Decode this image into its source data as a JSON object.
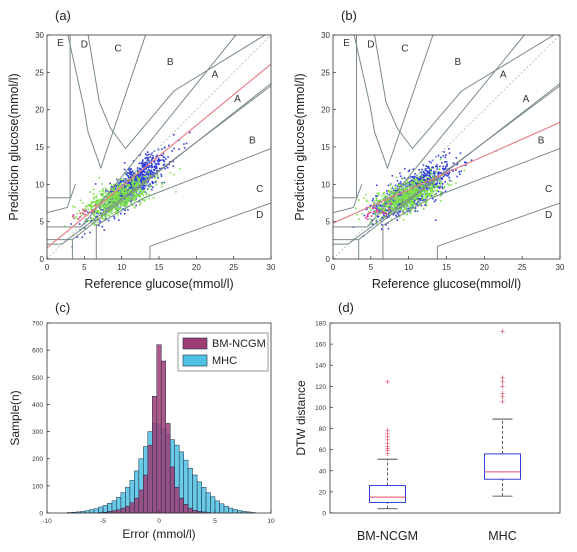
{
  "chart_data": [
    {
      "panel": "(a)",
      "type": "scatter",
      "subtype": "clarke-error-grid",
      "xlabel": "Reference glucose(mmol/l)",
      "ylabel": "Prediction glucose(mmol/l)",
      "xlim": [
        0,
        30
      ],
      "ylim": [
        0,
        30
      ],
      "xticks": [
        0,
        5,
        10,
        15,
        20,
        25,
        30
      ],
      "yticks": [
        0,
        5,
        10,
        15,
        20,
        25,
        30
      ],
      "zone_labels": [
        {
          "label": "E",
          "x": 1.8,
          "y": 28.5
        },
        {
          "label": "D",
          "x": 5.0,
          "y": 28.3
        },
        {
          "label": "C",
          "x": 9.5,
          "y": 27.8
        },
        {
          "label": "B",
          "x": 16.5,
          "y": 26.0
        },
        {
          "label": "A",
          "x": 22.5,
          "y": 24.3
        },
        {
          "label": "A",
          "x": 25.5,
          "y": 21.0
        },
        {
          "label": "B",
          "x": 27.5,
          "y": 15.5
        },
        {
          "label": "C",
          "x": 28.5,
          "y": 9.0
        },
        {
          "label": "D",
          "x": 28.5,
          "y": 5.5
        }
      ],
      "series": [
        {
          "color": "#3340d8",
          "center": [
            10.5,
            9.9
          ],
          "spread": 2.4,
          "slope": 0.78,
          "points": 900
        },
        {
          "color": "#7fe24a",
          "center": [
            8.8,
            8.3
          ],
          "spread": 2.2,
          "slope": 0.45,
          "points": 700
        },
        {
          "color": "#e8389a",
          "center": [
            4.2,
            6.2
          ],
          "spread": 0.8,
          "slope": 0.3,
          "points": 15
        }
      ],
      "fit_line": {
        "color": "#e8828a",
        "intercept": 1.5,
        "slope": 0.82
      }
    },
    {
      "panel": "(b)",
      "type": "scatter",
      "subtype": "clarke-error-grid",
      "xlabel": "Reference glucose(mmol/l)",
      "ylabel": "Prediction glucose(mmol/l)",
      "xlim": [
        0,
        30
      ],
      "ylim": [
        0,
        30
      ],
      "xticks": [
        0,
        5,
        10,
        15,
        20,
        25,
        30
      ],
      "yticks": [
        0,
        5,
        10,
        15,
        20,
        25,
        30
      ],
      "zone_labels": [
        {
          "label": "E",
          "x": 1.8,
          "y": 28.5
        },
        {
          "label": "D",
          "x": 5.0,
          "y": 28.3
        },
        {
          "label": "C",
          "x": 9.5,
          "y": 27.8
        },
        {
          "label": "B",
          "x": 16.5,
          "y": 26.0
        },
        {
          "label": "A",
          "x": 22.5,
          "y": 24.3
        },
        {
          "label": "A",
          "x": 25.5,
          "y": 21.0
        },
        {
          "label": "B",
          "x": 27.5,
          "y": 15.5
        },
        {
          "label": "C",
          "x": 28.5,
          "y": 9.0
        },
        {
          "label": "D",
          "x": 28.5,
          "y": 5.5
        }
      ],
      "series": [
        {
          "color": "#3340d8",
          "center": [
            10.0,
            9.3
          ],
          "spread": 2.5,
          "slope": 0.55,
          "points": 900
        },
        {
          "color": "#7fe24a",
          "center": [
            9.0,
            8.5
          ],
          "spread": 2.2,
          "slope": 0.35,
          "points": 700
        },
        {
          "color": "#e8389a",
          "center": [
            5.0,
            6.3
          ],
          "spread": 0.7,
          "slope": 0.3,
          "points": 25
        }
      ],
      "fit_line": {
        "color": "#e8828a",
        "intercept": 4.8,
        "slope": 0.45
      }
    },
    {
      "panel": "(c)",
      "type": "bar",
      "subtype": "histogram",
      "xlabel": "Error (mmol/l)",
      "ylabel": "Sample(n)",
      "xlim": [
        -10,
        10
      ],
      "ylim": [
        0,
        700
      ],
      "xticks": [
        -10,
        -5,
        0,
        5,
        10
      ],
      "yticks": [
        0,
        100,
        200,
        300,
        400,
        500,
        600,
        700
      ],
      "bin_width": 0.4,
      "series": [
        {
          "name": "BM-NCGM",
          "color": "#9e3d74",
          "bins": [
            [
              -5.2,
              2
            ],
            [
              -4.8,
              3
            ],
            [
              -4.4,
              6
            ],
            [
              -4.0,
              8
            ],
            [
              -3.6,
              12
            ],
            [
              -3.2,
              18
            ],
            [
              -2.8,
              25
            ],
            [
              -2.4,
              38
            ],
            [
              -2.0,
              55
            ],
            [
              -1.6,
              85
            ],
            [
              -1.2,
              140
            ],
            [
              -0.8,
              250
            ],
            [
              -0.4,
              430
            ],
            [
              0.0,
              620
            ],
            [
              0.4,
              560
            ],
            [
              0.8,
              330
            ],
            [
              1.2,
              170
            ],
            [
              1.6,
              95
            ],
            [
              2.0,
              55
            ],
            [
              2.4,
              32
            ],
            [
              2.8,
              18
            ],
            [
              3.2,
              10
            ],
            [
              3.6,
              6
            ],
            [
              4.0,
              4
            ],
            [
              4.4,
              2
            ]
          ]
        },
        {
          "name": "MHC",
          "color": "#4fc1e3",
          "bins": [
            [
              -8.0,
              2
            ],
            [
              -7.6,
              3
            ],
            [
              -7.2,
              4
            ],
            [
              -6.8,
              6
            ],
            [
              -6.4,
              8
            ],
            [
              -6.0,
              12
            ],
            [
              -5.6,
              16
            ],
            [
              -5.2,
              22
            ],
            [
              -4.8,
              28
            ],
            [
              -4.4,
              36
            ],
            [
              -4.0,
              45
            ],
            [
              -3.6,
              58
            ],
            [
              -3.2,
              75
            ],
            [
              -2.8,
              95
            ],
            [
              -2.4,
              120
            ],
            [
              -2.0,
              155
            ],
            [
              -1.6,
              200
            ],
            [
              -1.2,
              245
            ],
            [
              -0.8,
              300
            ],
            [
              -0.4,
              330
            ],
            [
              0.0,
              325
            ],
            [
              0.4,
              310
            ],
            [
              0.8,
              290
            ],
            [
              1.2,
              270
            ],
            [
              1.6,
              250
            ],
            [
              2.0,
              225
            ],
            [
              2.4,
              195
            ],
            [
              2.8,
              165
            ],
            [
              3.2,
              140
            ],
            [
              3.6,
              115
            ],
            [
              4.0,
              95
            ],
            [
              4.4,
              75
            ],
            [
              4.8,
              60
            ],
            [
              5.2,
              45
            ],
            [
              5.6,
              34
            ],
            [
              6.0,
              25
            ],
            [
              6.4,
              18
            ],
            [
              6.8,
              13
            ],
            [
              7.2,
              9
            ],
            [
              7.6,
              6
            ],
            [
              8.0,
              4
            ],
            [
              8.4,
              2
            ]
          ]
        }
      ],
      "legend": {
        "position": "top-right"
      }
    },
    {
      "panel": "(d)",
      "type": "box",
      "ylabel": "DTW distance",
      "ylim": [
        0,
        180
      ],
      "yticks": [
        0,
        20,
        40,
        60,
        80,
        100,
        120,
        140,
        160,
        180
      ],
      "categories": [
        "BM-NCGM",
        "MHC"
      ],
      "boxes": [
        {
          "category": "BM-NCGM",
          "whisker_low": 4,
          "q1": 10,
          "median": 15,
          "q3": 26,
          "whisker_high": 51,
          "outliers": [
            56,
            59,
            61,
            63,
            66,
            69,
            72,
            75,
            78,
            124
          ]
        },
        {
          "category": "MHC",
          "whisker_low": 16,
          "q1": 32,
          "median": 39,
          "q3": 56,
          "whisker_high": 89,
          "outliers": [
            105,
            110,
            113,
            120,
            124,
            128,
            172
          ]
        }
      ],
      "box_color": "#3340d8",
      "median_color": "#e84a6a",
      "outlier_color": "#e84a6a"
    }
  ]
}
